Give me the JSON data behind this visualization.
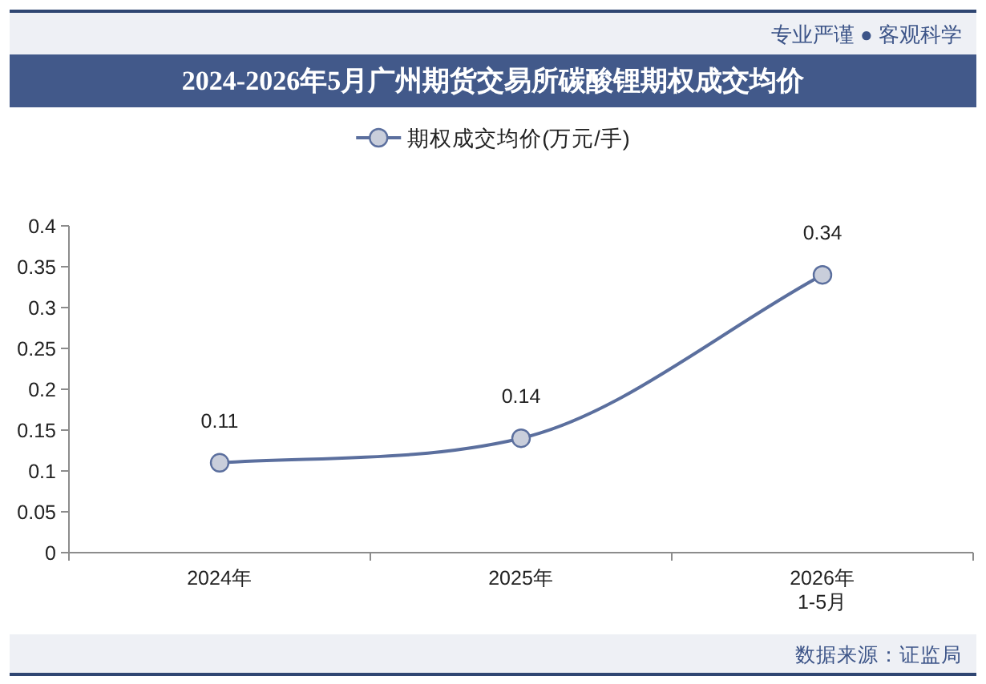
{
  "chart_data": {
    "type": "line",
    "title": "2024-2026年5月广州期货交易所碳酸锂期权成交均价",
    "categories": [
      "2024年",
      "2025年",
      "2026年\n1-5月"
    ],
    "series": [
      {
        "name": "期权成交均价(万元/手)",
        "color": "#5b6f9e",
        "values": [
          0.11,
          0.14,
          0.34
        ]
      }
    ],
    "ylim": [
      0,
      0.4
    ],
    "yticks": [
      0,
      0.05,
      0.1,
      0.15,
      0.2,
      0.25,
      0.3,
      0.35,
      0.4
    ],
    "data_labels": true,
    "legend": "top",
    "marker": "circle",
    "grid": false,
    "annotations": [
      "专业严谨 ● 客观科学",
      "数据来源：证监局"
    ]
  }
}
